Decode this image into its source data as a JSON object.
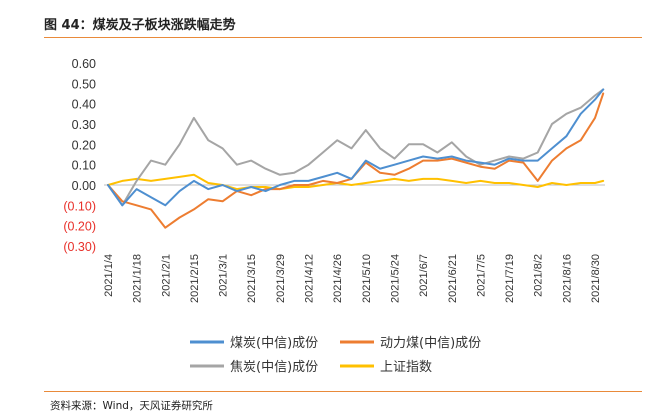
{
  "header": {
    "figure_title": "图 44：煤炭及子板块涨跌幅走势"
  },
  "footer": {
    "source": "资料来源：Wind，天风证券研究所"
  },
  "chart_data": {
    "type": "line",
    "title": "",
    "xlabel": "",
    "ylabel": "",
    "ylim": [
      -0.3,
      0.6
    ],
    "yticks": [
      "0.60",
      "0.50",
      "0.40",
      "0.30",
      "0.20",
      "0.10",
      "0.00",
      "(0.10)",
      "(0.20)",
      "(0.30)"
    ],
    "x_tick_labels": [
      "2021/1/4",
      "2021/1/18",
      "2021/2/1",
      "2021/2/15",
      "2021/3/1",
      "2021/3/15",
      "2021/3/29",
      "2021/4/12",
      "2021/4/26",
      "2021/5/10",
      "2021/5/24",
      "2021/6/7",
      "2021/6/21",
      "2021/7/5",
      "2021/7/19",
      "2021/8/2",
      "2021/8/16",
      "2021/8/30"
    ],
    "grid": false,
    "legend": "bottom",
    "x": [
      "2021/1/4",
      "2021/1/11",
      "2021/1/18",
      "2021/1/25",
      "2021/2/1",
      "2021/2/8",
      "2021/2/15",
      "2021/2/22",
      "2021/3/1",
      "2021/3/8",
      "2021/3/15",
      "2021/3/22",
      "2021/3/29",
      "2021/4/5",
      "2021/4/12",
      "2021/4/19",
      "2021/4/26",
      "2021/5/3",
      "2021/5/10",
      "2021/5/17",
      "2021/5/24",
      "2021/5/31",
      "2021/6/7",
      "2021/6/14",
      "2021/6/21",
      "2021/6/28",
      "2021/7/5",
      "2021/7/12",
      "2021/7/19",
      "2021/7/26",
      "2021/8/2",
      "2021/8/9",
      "2021/8/16",
      "2021/8/23",
      "2021/8/30",
      "2021/9/3"
    ],
    "series": [
      {
        "name": "煤炭(中信)成份",
        "color": "#4e8fd0",
        "values": [
          0.0,
          -0.1,
          -0.02,
          -0.06,
          -0.1,
          -0.03,
          0.02,
          -0.02,
          0.0,
          -0.03,
          -0.01,
          -0.03,
          0.0,
          0.02,
          0.02,
          0.04,
          0.06,
          0.03,
          0.12,
          0.08,
          0.1,
          0.12,
          0.14,
          0.13,
          0.14,
          0.12,
          0.11,
          0.1,
          0.13,
          0.12,
          0.12,
          0.18,
          0.24,
          0.35,
          0.42,
          0.47
        ]
      },
      {
        "name": "动力煤(中信)成份",
        "color": "#ed7d31",
        "values": [
          0.0,
          -0.08,
          -0.1,
          -0.12,
          -0.21,
          -0.16,
          -0.12,
          -0.07,
          -0.08,
          -0.03,
          -0.05,
          -0.02,
          -0.02,
          0.0,
          0.0,
          0.02,
          0.01,
          0.03,
          0.11,
          0.06,
          0.05,
          0.08,
          0.12,
          0.12,
          0.13,
          0.11,
          0.09,
          0.08,
          0.12,
          0.11,
          0.02,
          0.12,
          0.18,
          0.22,
          0.33,
          0.45
        ]
      },
      {
        "name": "焦炭(中信)成份",
        "color": "#a5a5a5",
        "values": [
          0.0,
          -0.1,
          0.02,
          0.12,
          0.1,
          0.2,
          0.33,
          0.22,
          0.18,
          0.1,
          0.12,
          0.08,
          0.05,
          0.06,
          0.1,
          0.16,
          0.22,
          0.18,
          0.27,
          0.18,
          0.13,
          0.2,
          0.2,
          0.16,
          0.21,
          0.14,
          0.1,
          0.12,
          0.14,
          0.13,
          0.16,
          0.3,
          0.35,
          0.38,
          0.44,
          0.47
        ]
      },
      {
        "name": "上证指数",
        "color": "#ffc000",
        "values": [
          0.0,
          0.02,
          0.03,
          0.02,
          0.03,
          0.04,
          0.05,
          0.01,
          0.0,
          -0.02,
          -0.01,
          -0.01,
          -0.02,
          -0.01,
          -0.01,
          0.0,
          0.01,
          0.0,
          0.01,
          0.02,
          0.03,
          0.02,
          0.03,
          0.03,
          0.02,
          0.01,
          0.02,
          0.01,
          0.01,
          0.0,
          -0.01,
          0.01,
          0.0,
          0.01,
          0.01,
          0.02
        ]
      }
    ]
  }
}
